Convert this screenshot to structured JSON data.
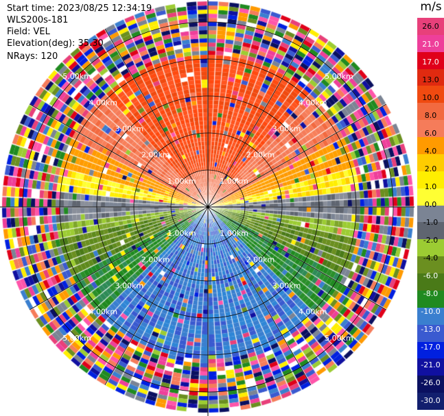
{
  "info": {
    "start_time": "Start time: 2023/08/25 12:34:19",
    "instrument": "WLS200s-181",
    "field": "Field: VEL",
    "elevation": "Elevation(deg): 35.30",
    "nrays": "NRays: 120"
  },
  "colorbar": {
    "unit": "m/s",
    "ticks": [
      "26.0",
      "21.0",
      "17.0",
      "13.0",
      "10.0",
      "8.0",
      "6.0",
      "4.0",
      "2.0",
      "1.0",
      "0.0",
      "-1.0",
      "-2.0",
      "-4.0",
      "-6.0",
      "-8.0",
      "-10.0",
      "-13.0",
      "-17.0",
      "-21.0",
      "-26.0",
      "-30.0"
    ],
    "colors": [
      "#e8407a",
      "#ee3f9a",
      "#e0001a",
      "#e02a10",
      "#f04a10",
      "#f26a40",
      "#f57c5a",
      "#ff9a00",
      "#ffcc00",
      "#ffee00",
      "#ffff33",
      "#7b8494",
      "#5f6570",
      "#9ccc33",
      "#6b8f20",
      "#4a7a18",
      "#208a20",
      "#3a7fcf",
      "#3a5ad0",
      "#0020e0",
      "#1010a0",
      "#0a1060",
      "#121f6e"
    ]
  },
  "chart_data": {
    "type": "heatmap",
    "projection": "polar-ppi",
    "field": "VEL",
    "unit": "m/s",
    "nrays": 120,
    "range_rings_km": [
      1.0,
      2.0,
      3.0,
      4.0,
      5.0
    ],
    "ring_labels": [
      "1.00km",
      "2.00km",
      "3.00km",
      "4.00km",
      "5.00km"
    ],
    "spokes_deg": [
      0,
      30,
      60,
      90,
      120,
      150,
      180,
      210,
      240,
      270,
      300,
      330
    ],
    "velocity_pattern": {
      "north_sector_mean_ms": 12,
      "south_sector_mean_ms": -10,
      "east_west_mean_ms": 0,
      "noise_beyond_km": 4.0
    },
    "colorbar_range": [
      -30,
      26
    ]
  }
}
